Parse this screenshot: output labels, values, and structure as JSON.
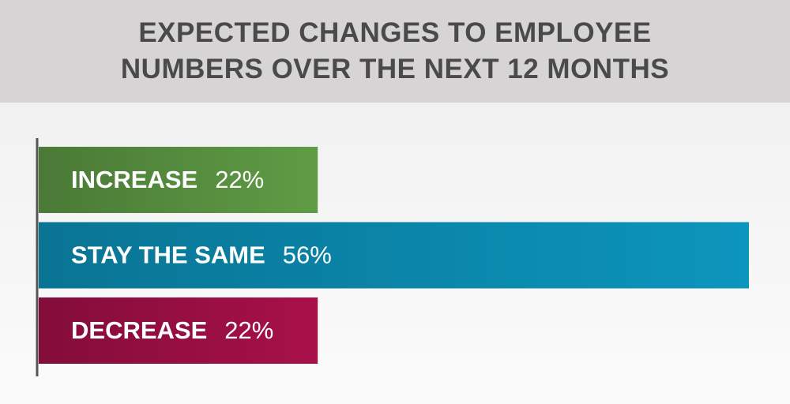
{
  "chart_data": {
    "type": "hbar",
    "title": "EXPECTED CHANGES TO EMPLOYEE\nNUMBERS OVER THE NEXT 12 MONTHS",
    "categories": [
      "INCREASE",
      "STAY THE SAME",
      "DECREASE"
    ],
    "values": [
      22,
      56,
      22
    ],
    "value_labels": [
      "22%",
      "56%",
      "22%"
    ],
    "colors": [
      "#5f9c45",
      "#0c95bd",
      "#a8104a"
    ]
  }
}
